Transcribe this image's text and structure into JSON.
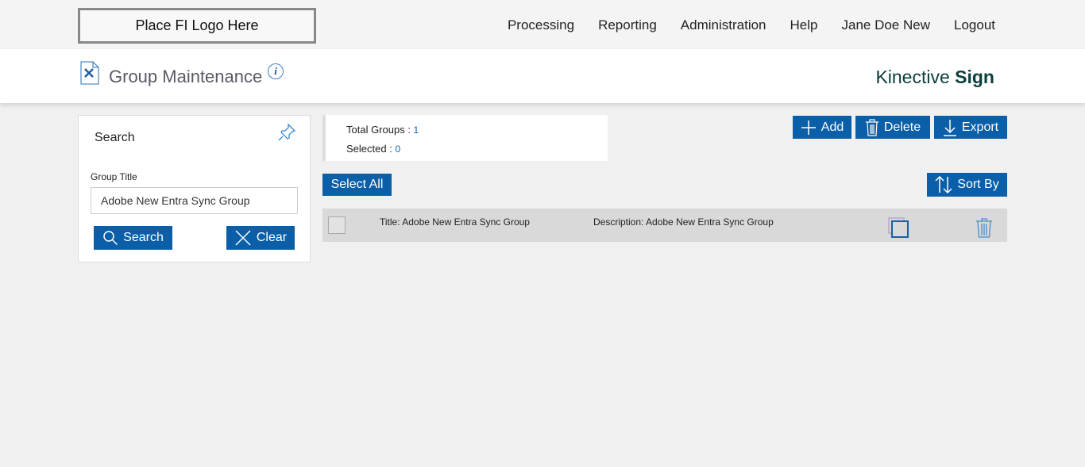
{
  "logo": "Place FI Logo Here",
  "nav": [
    "Processing",
    "Reporting",
    "Administration",
    "Help",
    "Jane Doe New",
    "Logout"
  ],
  "page_title": "Group Maintenance",
  "brand": {
    "light": "Kinective",
    "bold": "Sign"
  },
  "search": {
    "heading": "Search",
    "field_label": "Group Title",
    "field_value": "Adobe New Entra Sync Group",
    "search_label": "Search",
    "clear_label": "Clear"
  },
  "summary": {
    "total_label": "Total Groups : ",
    "total": "1",
    "selected_label": "Selected : ",
    "selected": "0"
  },
  "toolbar": {
    "add": "Add",
    "delete": "Delete",
    "export": "Export",
    "select_all": "Select All",
    "sort_by": "Sort By"
  },
  "rows": [
    {
      "title": "Title:  Adobe New Entra Sync Group",
      "description": "Description: Adobe New Entra Sync Group"
    }
  ],
  "colors": {
    "primary": "#0a5fa8",
    "brand": "#0d3d3d"
  }
}
